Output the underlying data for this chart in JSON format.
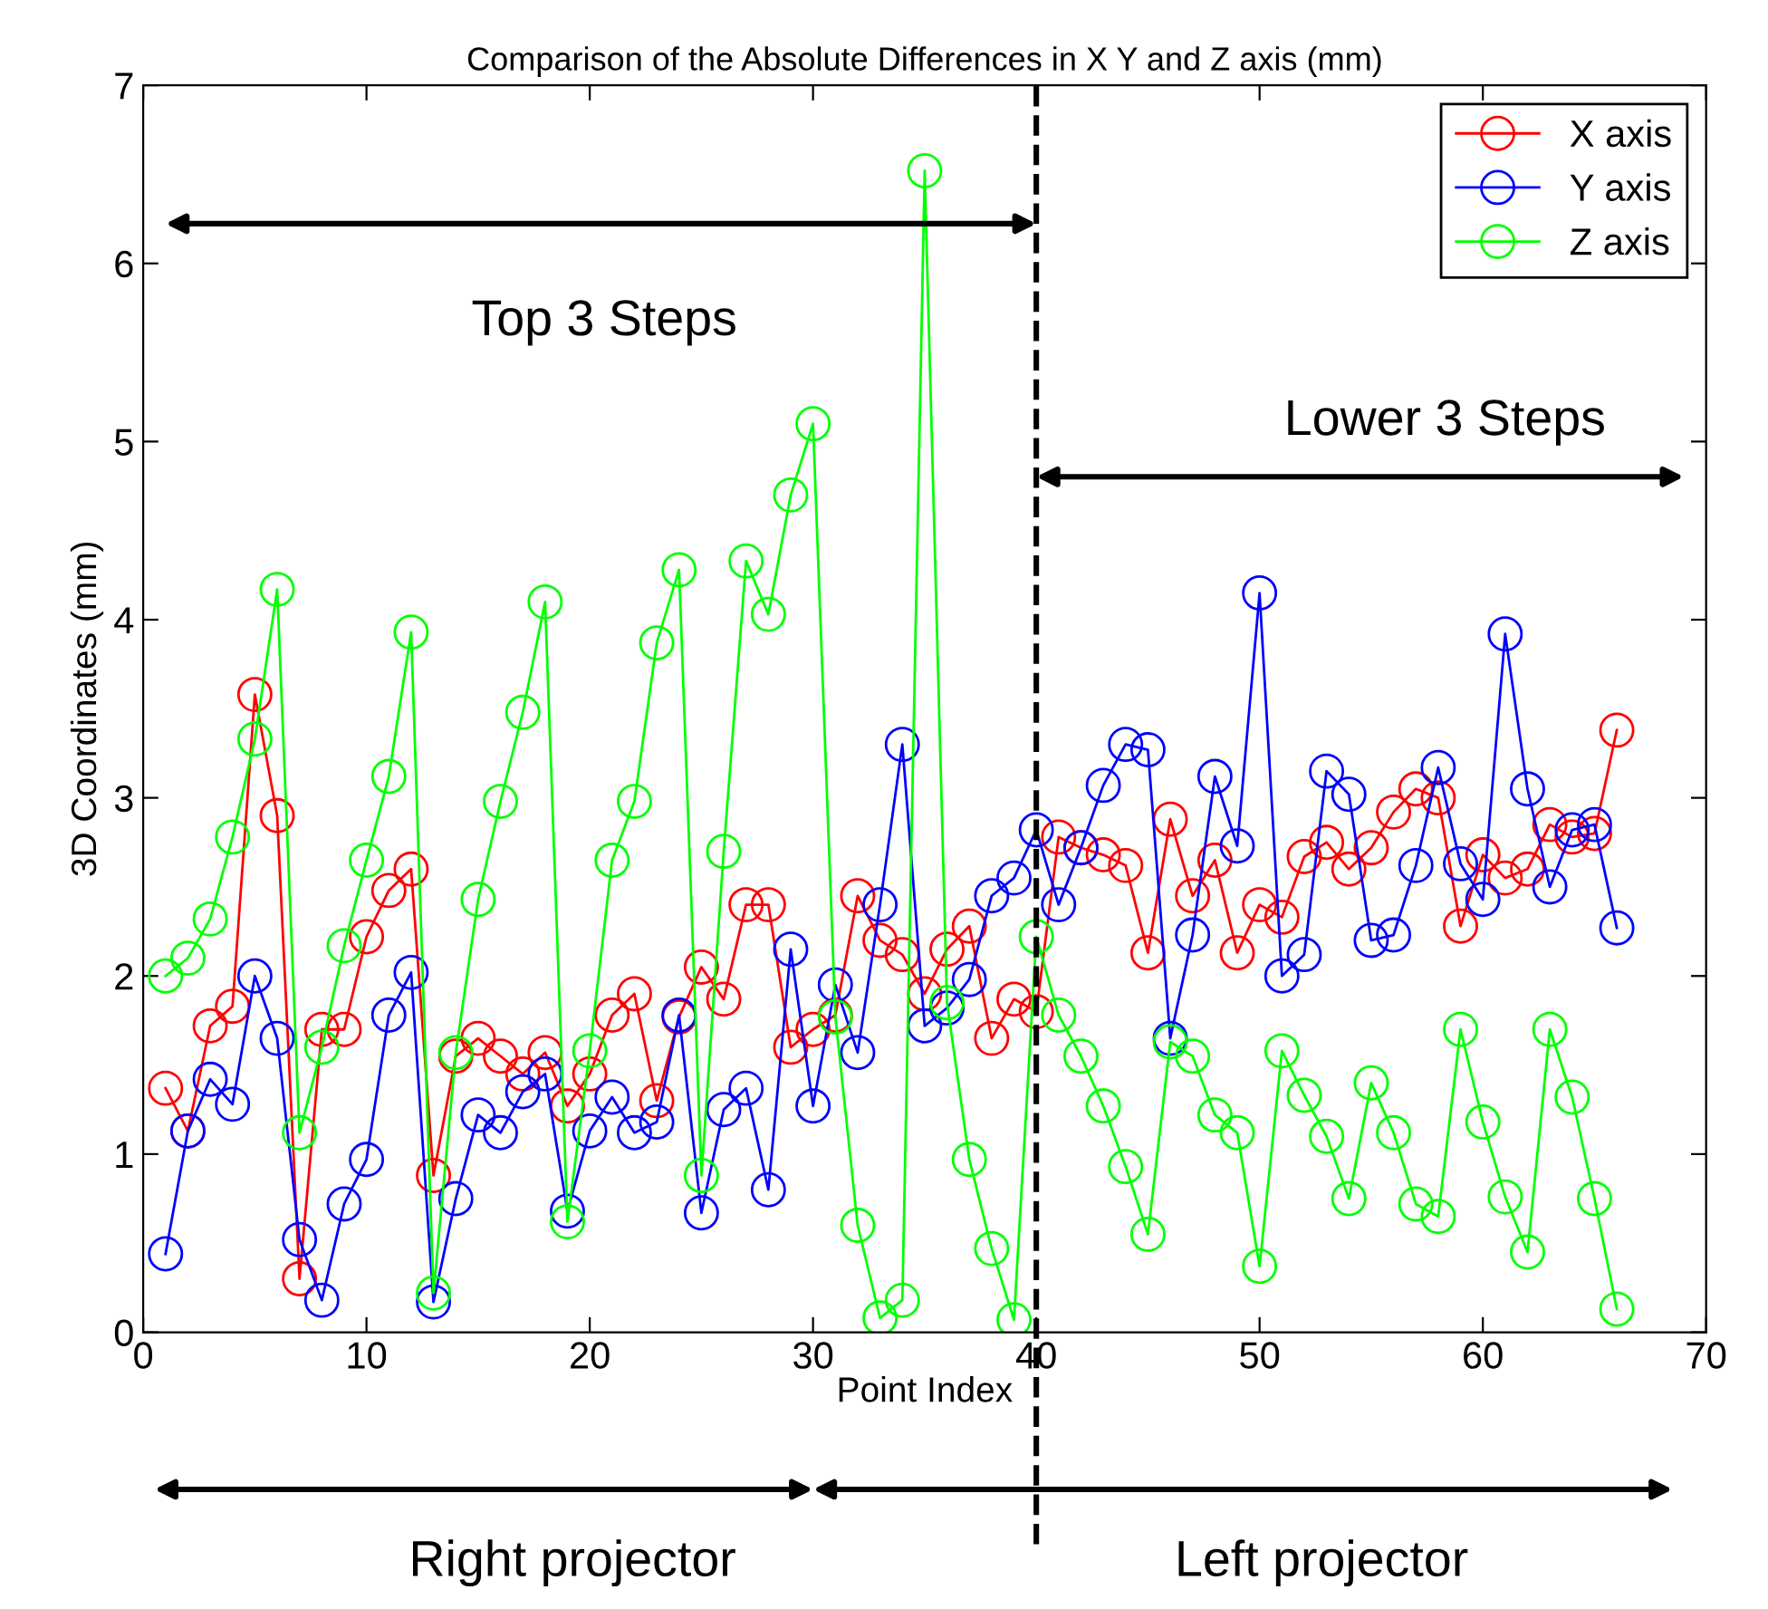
{
  "chart_data": {
    "type": "line",
    "title": "Comparison of the Absolute Differences in X Y and Z axis (mm)",
    "xlabel": "Point Index",
    "ylabel": "3D Coordinates (mm)",
    "x": [
      1,
      2,
      3,
      4,
      5,
      6,
      7,
      8,
      9,
      10,
      11,
      12,
      13,
      14,
      15,
      16,
      17,
      18,
      19,
      20,
      21,
      22,
      23,
      24,
      25,
      26,
      27,
      28,
      29,
      30,
      31,
      32,
      33,
      34,
      35,
      36,
      37,
      38,
      39,
      40,
      41,
      42,
      43,
      44,
      45,
      46,
      47,
      48,
      49,
      50,
      51,
      52,
      53,
      54,
      55,
      56,
      57,
      58,
      59,
      60,
      61,
      62,
      63,
      64,
      65,
      66
    ],
    "series": [
      {
        "name": "X axis",
        "color": "#ff0000",
        "values": [
          1.37,
          1.13,
          1.72,
          1.83,
          3.58,
          2.9,
          0.3,
          1.7,
          1.7,
          2.22,
          2.48,
          2.6,
          0.88,
          1.55,
          1.65,
          1.55,
          1.45,
          1.57,
          1.27,
          1.45,
          1.78,
          1.9,
          1.3,
          1.77,
          2.05,
          1.87,
          2.4,
          2.4,
          1.6,
          1.7,
          1.78,
          2.45,
          2.2,
          2.12,
          1.9,
          2.15,
          2.28,
          1.65,
          1.87,
          1.8,
          2.78,
          2.72,
          2.68,
          2.62,
          2.13,
          2.88,
          2.45,
          2.65,
          2.13,
          2.4,
          2.33,
          2.67,
          2.75,
          2.6,
          2.72,
          2.92,
          3.05,
          3.0,
          2.28,
          2.68,
          2.55,
          2.6,
          2.85,
          2.78,
          2.8,
          3.38
        ]
      },
      {
        "name": "Y axis",
        "color": "#0000ff",
        "values": [
          0.44,
          1.13,
          1.42,
          1.28,
          2.0,
          1.65,
          0.52,
          0.18,
          0.72,
          0.97,
          1.78,
          2.02,
          0.17,
          0.75,
          1.22,
          1.12,
          1.35,
          1.45,
          0.68,
          1.13,
          1.32,
          1.12,
          1.18,
          1.78,
          0.67,
          1.25,
          1.37,
          0.8,
          2.15,
          1.27,
          1.95,
          1.57,
          2.4,
          3.3,
          1.72,
          1.82,
          1.98,
          2.45,
          2.55,
          2.82,
          2.4,
          2.72,
          3.07,
          3.3,
          3.27,
          1.65,
          2.23,
          3.12,
          2.73,
          4.15,
          2.0,
          2.12,
          3.15,
          3.02,
          2.2,
          2.23,
          2.62,
          3.17,
          2.63,
          2.43,
          3.92,
          3.05,
          2.5,
          2.82,
          2.85,
          2.27
        ]
      },
      {
        "name": "Z axis",
        "color": "#00ff00",
        "values": [
          2.0,
          2.1,
          2.32,
          2.78,
          3.33,
          4.17,
          1.12,
          1.6,
          2.17,
          2.65,
          3.12,
          3.93,
          0.22,
          1.57,
          2.43,
          2.98,
          3.48,
          4.1,
          0.62,
          1.58,
          2.65,
          2.98,
          3.87,
          4.28,
          0.88,
          2.7,
          4.33,
          4.03,
          4.7,
          5.1,
          1.77,
          0.6,
          0.08,
          0.18,
          6.52,
          1.85,
          0.97,
          0.47,
          0.07,
          2.22,
          1.78,
          1.55,
          1.27,
          0.93,
          0.55,
          1.63,
          1.55,
          1.22,
          1.12,
          0.37,
          1.58,
          1.33,
          1.1,
          0.75,
          1.4,
          1.12,
          0.72,
          0.65,
          1.7,
          1.18,
          0.76,
          0.45,
          1.7,
          1.32,
          0.75,
          0.13
        ]
      }
    ],
    "xlim": [
      0,
      70
    ],
    "xticks": [
      0,
      10,
      20,
      30,
      40,
      50,
      60,
      70
    ],
    "ylim": [
      0,
      7
    ],
    "yticks": [
      0,
      1,
      2,
      3,
      4,
      5,
      6,
      7
    ],
    "marker": "circle",
    "legend": "top right",
    "grid": false,
    "ref_lines": [
      {
        "axis": "x",
        "value": 40,
        "color": "#000000",
        "line_style": "dashed"
      }
    ],
    "annotations": [
      "Top 3 Steps",
      "Lower 3 Steps",
      "Right projector",
      "Left projector"
    ]
  }
}
